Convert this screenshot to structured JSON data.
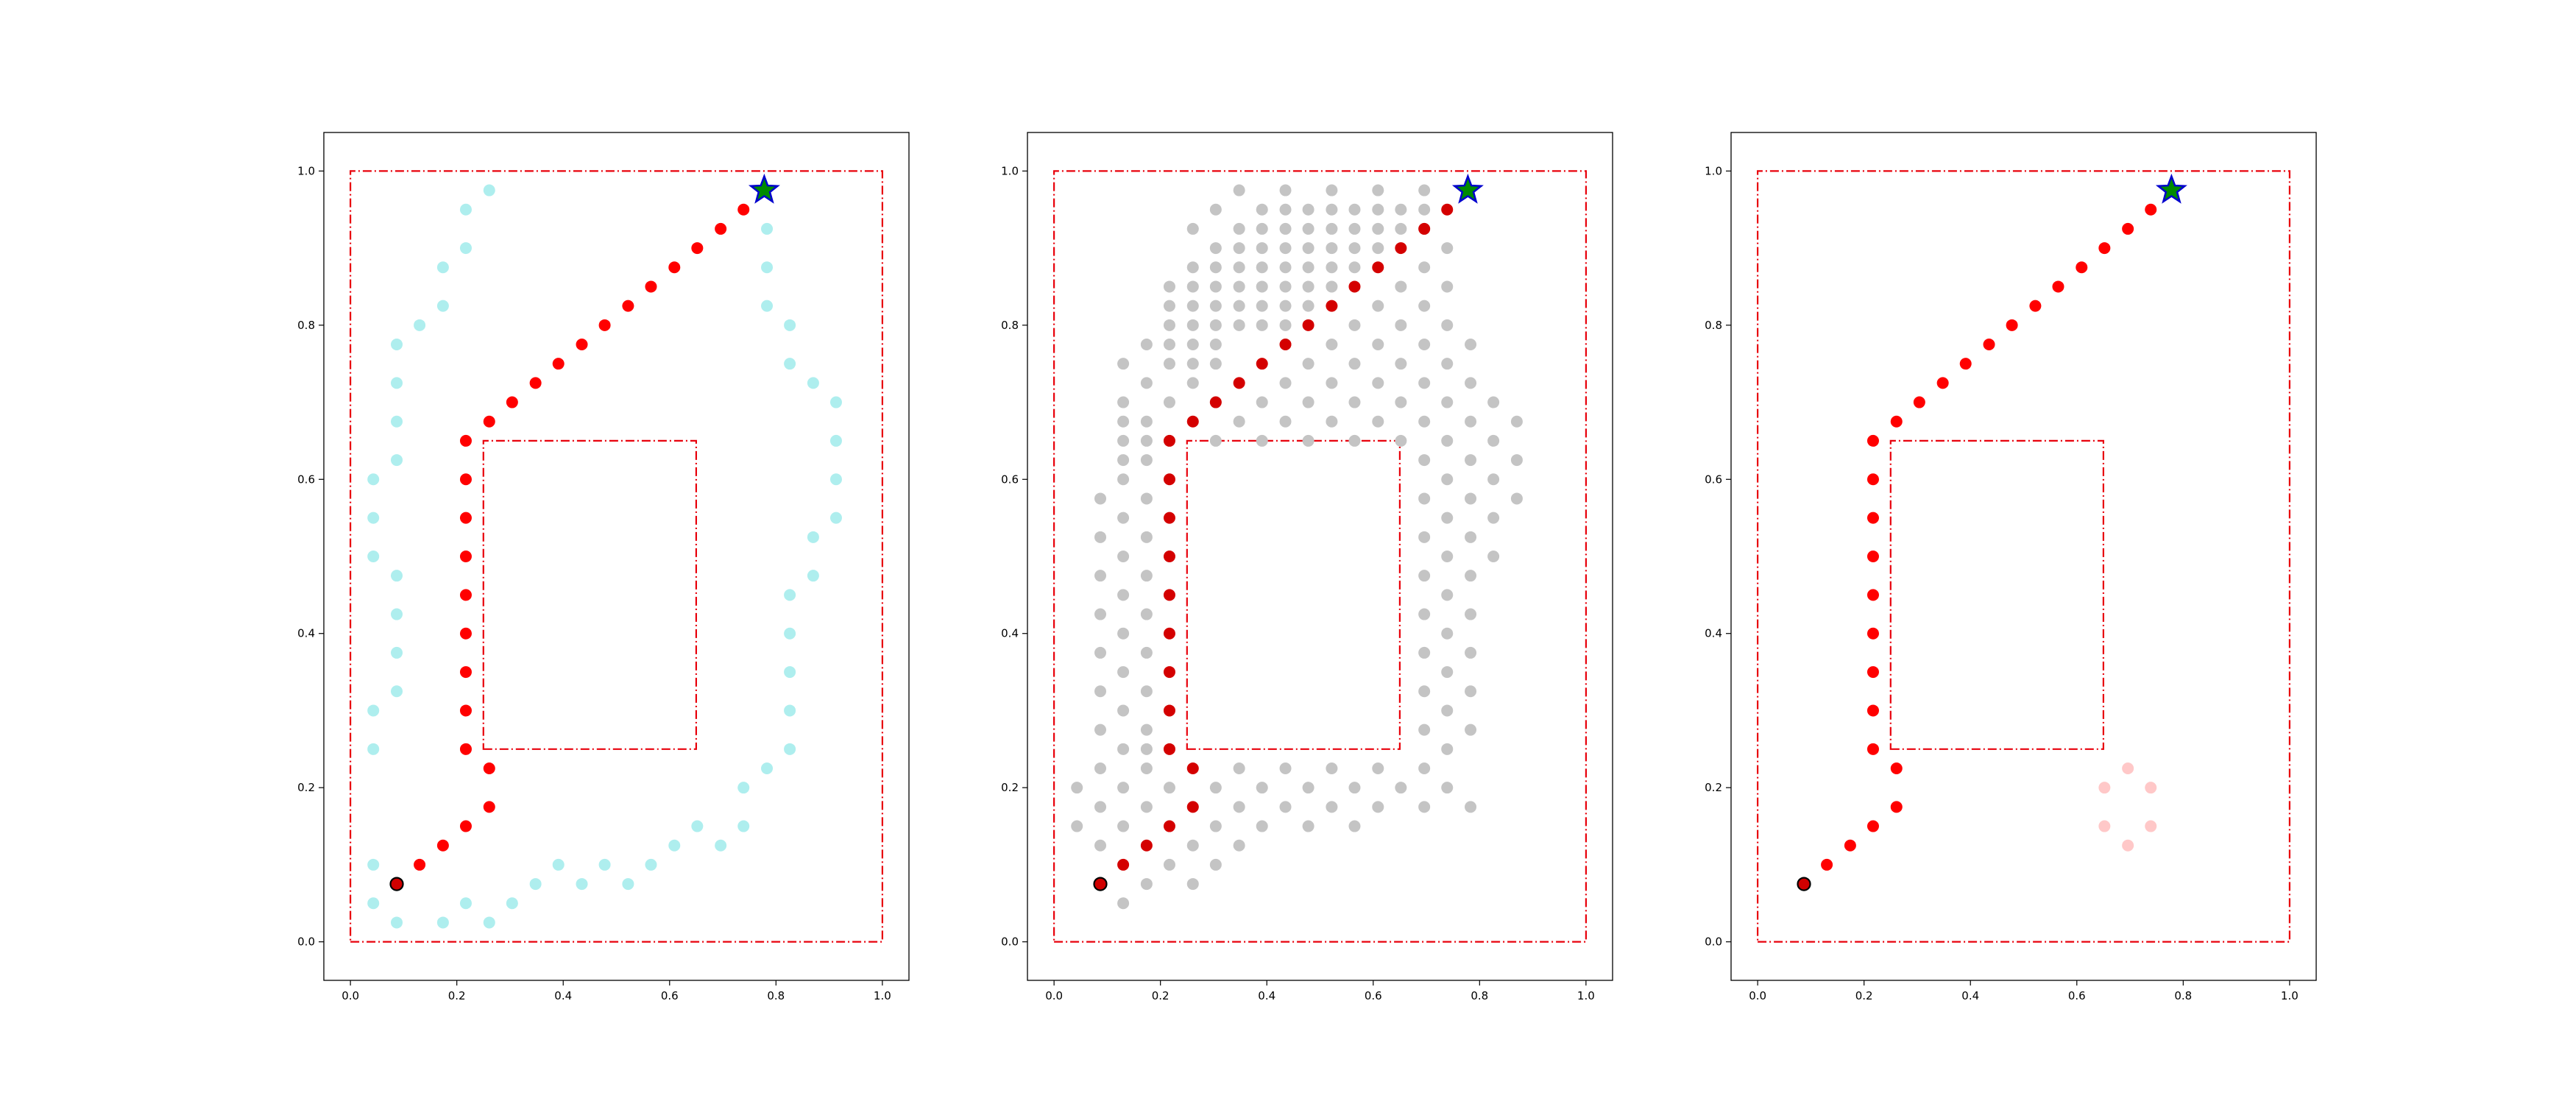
{
  "chart_data": [
    {
      "type": "scatter",
      "title": "",
      "xlabel": "",
      "ylabel": "",
      "xlim": [
        -0.05,
        1.05
      ],
      "ylim": [
        -0.05,
        1.05
      ],
      "xticks": [
        "0.0",
        "0.2",
        "0.4",
        "0.6",
        "0.8",
        "1.0"
      ],
      "yticks": [
        "0.0",
        "0.2",
        "0.4",
        "0.6",
        "0.8",
        "1.0"
      ],
      "grid": false,
      "outer_boundary": [
        [
          0,
          0
        ],
        [
          1,
          0
        ],
        [
          1,
          1
        ],
        [
          0,
          1
        ]
      ],
      "obstacle": [
        [
          0.25,
          0.25
        ],
        [
          0.65,
          0.25
        ],
        [
          0.65,
          0.65
        ],
        [
          0.25,
          0.65
        ]
      ],
      "start": [
        0.087,
        0.075
      ],
      "goal": [
        0.778,
        0.975
      ],
      "explored_points": [
        [
          0.043,
          0.05
        ],
        [
          0.087,
          0.025
        ],
        [
          0.043,
          0.1
        ],
        [
          0.174,
          0.025
        ],
        [
          0.217,
          0.05
        ],
        [
          0.261,
          0.025
        ],
        [
          0.304,
          0.05
        ],
        [
          0.348,
          0.075
        ],
        [
          0.391,
          0.1
        ],
        [
          0.435,
          0.075
        ],
        [
          0.478,
          0.1
        ],
        [
          0.522,
          0.075
        ],
        [
          0.565,
          0.1
        ],
        [
          0.609,
          0.125
        ],
        [
          0.652,
          0.15
        ],
        [
          0.696,
          0.125
        ],
        [
          0.739,
          0.15
        ],
        [
          0.739,
          0.2
        ],
        [
          0.783,
          0.225
        ],
        [
          0.826,
          0.25
        ],
        [
          0.826,
          0.3
        ],
        [
          0.826,
          0.35
        ],
        [
          0.826,
          0.4
        ],
        [
          0.826,
          0.45
        ],
        [
          0.87,
          0.475
        ],
        [
          0.87,
          0.525
        ],
        [
          0.913,
          0.55
        ],
        [
          0.913,
          0.6
        ],
        [
          0.913,
          0.65
        ],
        [
          0.913,
          0.7
        ],
        [
          0.87,
          0.725
        ],
        [
          0.826,
          0.75
        ],
        [
          0.826,
          0.8
        ],
        [
          0.783,
          0.825
        ],
        [
          0.783,
          0.875
        ],
        [
          0.783,
          0.925
        ],
        [
          0.043,
          0.25
        ],
        [
          0.043,
          0.3
        ],
        [
          0.087,
          0.325
        ],
        [
          0.087,
          0.375
        ],
        [
          0.087,
          0.425
        ],
        [
          0.087,
          0.475
        ],
        [
          0.043,
          0.5
        ],
        [
          0.043,
          0.55
        ],
        [
          0.043,
          0.6
        ],
        [
          0.087,
          0.625
        ],
        [
          0.087,
          0.675
        ],
        [
          0.087,
          0.725
        ],
        [
          0.087,
          0.775
        ],
        [
          0.13,
          0.8
        ],
        [
          0.174,
          0.825
        ],
        [
          0.174,
          0.875
        ],
        [
          0.217,
          0.9
        ],
        [
          0.217,
          0.95
        ],
        [
          0.261,
          0.975
        ]
      ],
      "path": [
        [
          0.087,
          0.075
        ],
        [
          0.13,
          0.1
        ],
        [
          0.174,
          0.125
        ],
        [
          0.217,
          0.15
        ],
        [
          0.261,
          0.175
        ],
        [
          0.261,
          0.225
        ],
        [
          0.217,
          0.25
        ],
        [
          0.217,
          0.3
        ],
        [
          0.217,
          0.35
        ],
        [
          0.217,
          0.4
        ],
        [
          0.217,
          0.45
        ],
        [
          0.217,
          0.5
        ],
        [
          0.217,
          0.55
        ],
        [
          0.217,
          0.6
        ],
        [
          0.217,
          0.65
        ],
        [
          0.261,
          0.675
        ],
        [
          0.304,
          0.7
        ],
        [
          0.348,
          0.725
        ],
        [
          0.391,
          0.75
        ],
        [
          0.435,
          0.775
        ],
        [
          0.478,
          0.8
        ],
        [
          0.522,
          0.825
        ],
        [
          0.565,
          0.85
        ],
        [
          0.609,
          0.875
        ],
        [
          0.652,
          0.9
        ],
        [
          0.696,
          0.925
        ],
        [
          0.739,
          0.95
        ],
        [
          0.778,
          0.975
        ]
      ],
      "colors": {
        "boundary": "#e8000b",
        "explored": "#aeeeee",
        "path": "#ff0000",
        "goal": "#008b00",
        "goal_edge": "#0000cd"
      }
    },
    {
      "type": "scatter",
      "title": "",
      "xlabel": "",
      "ylabel": "",
      "xlim": [
        -0.05,
        1.05
      ],
      "ylim": [
        -0.05,
        1.05
      ],
      "xticks": [
        "0.0",
        "0.2",
        "0.4",
        "0.6",
        "0.8",
        "1.0"
      ],
      "yticks": [
        "0.0",
        "0.2",
        "0.4",
        "0.6",
        "0.8",
        "1.0"
      ],
      "grid": false,
      "outer_boundary": [
        [
          0,
          0
        ],
        [
          1,
          0
        ],
        [
          1,
          1
        ],
        [
          0,
          1
        ]
      ],
      "obstacle": [
        [
          0.25,
          0.25
        ],
        [
          0.65,
          0.25
        ],
        [
          0.65,
          0.65
        ],
        [
          0.25,
          0.65
        ]
      ],
      "start": [
        0.087,
        0.075
      ],
      "goal": [
        0.778,
        0.975
      ],
      "explored_rows": [
        {
          "y": 0.05,
          "x": [
            0.13
          ]
        },
        {
          "y": 0.075,
          "x": [
            0.174,
            0.261
          ]
        },
        {
          "y": 0.1,
          "x": [
            0.217,
            0.304
          ]
        },
        {
          "y": 0.125,
          "x": [
            0.087,
            0.261,
            0.348
          ]
        },
        {
          "y": 0.15,
          "x": [
            0.043,
            0.13,
            0.304,
            0.391,
            0.478,
            0.565
          ]
        },
        {
          "y": 0.175,
          "x": [
            0.087,
            0.174,
            0.348,
            0.435,
            0.522,
            0.609,
            0.696,
            0.783
          ]
        },
        {
          "y": 0.2,
          "x": [
            0.043,
            0.13,
            0.217,
            0.304,
            0.391,
            0.478,
            0.565,
            0.652,
            0.739
          ]
        },
        {
          "y": 0.225,
          "x": [
            0.087,
            0.174,
            0.348,
            0.435,
            0.522,
            0.609,
            0.696
          ]
        },
        {
          "y": 0.25,
          "x": [
            0.13,
            0.174,
            0.739
          ]
        },
        {
          "y": 0.275,
          "x": [
            0.087,
            0.174,
            0.696,
            0.783
          ]
        },
        {
          "y": 0.3,
          "x": [
            0.13,
            0.739
          ]
        },
        {
          "y": 0.325,
          "x": [
            0.087,
            0.174,
            0.696,
            0.783
          ]
        },
        {
          "y": 0.35,
          "x": [
            0.13,
            0.739
          ]
        },
        {
          "y": 0.375,
          "x": [
            0.087,
            0.174,
            0.696,
            0.783
          ]
        },
        {
          "y": 0.4,
          "x": [
            0.13,
            0.739
          ]
        },
        {
          "y": 0.425,
          "x": [
            0.087,
            0.174,
            0.696,
            0.783
          ]
        },
        {
          "y": 0.45,
          "x": [
            0.13,
            0.739
          ]
        },
        {
          "y": 0.475,
          "x": [
            0.087,
            0.174,
            0.696,
            0.783
          ]
        },
        {
          "y": 0.5,
          "x": [
            0.13,
            0.739,
            0.826
          ]
        },
        {
          "y": 0.525,
          "x": [
            0.087,
            0.174,
            0.696,
            0.783
          ]
        },
        {
          "y": 0.55,
          "x": [
            0.13,
            0.739,
            0.826
          ]
        },
        {
          "y": 0.575,
          "x": [
            0.087,
            0.174,
            0.696,
            0.783,
            0.87
          ]
        },
        {
          "y": 0.6,
          "x": [
            0.13,
            0.739,
            0.826
          ]
        },
        {
          "y": 0.625,
          "x": [
            0.13,
            0.174,
            0.696,
            0.783,
            0.87
          ]
        },
        {
          "y": 0.65,
          "x": [
            0.13,
            0.174,
            0.304,
            0.391,
            0.478,
            0.565,
            0.652,
            0.739,
            0.826
          ]
        },
        {
          "y": 0.675,
          "x": [
            0.13,
            0.174,
            0.348,
            0.435,
            0.522,
            0.609,
            0.696,
            0.783,
            0.87
          ]
        },
        {
          "y": 0.7,
          "x": [
            0.13,
            0.217,
            0.304,
            0.391,
            0.478,
            0.565,
            0.652,
            0.739,
            0.826
          ]
        },
        {
          "y": 0.725,
          "x": [
            0.174,
            0.261,
            0.435,
            0.522,
            0.609,
            0.696,
            0.783
          ]
        },
        {
          "y": 0.75,
          "x": [
            0.13,
            0.217,
            0.261,
            0.304,
            0.478,
            0.565,
            0.652,
            0.739
          ]
        },
        {
          "y": 0.775,
          "x": [
            0.174,
            0.217,
            0.261,
            0.304,
            0.435,
            0.522,
            0.609,
            0.696,
            0.783
          ]
        },
        {
          "y": 0.8,
          "x": [
            0.217,
            0.261,
            0.304,
            0.348,
            0.391,
            0.435,
            0.565,
            0.652,
            0.739
          ]
        },
        {
          "y": 0.825,
          "x": [
            0.217,
            0.261,
            0.304,
            0.348,
            0.391,
            0.435,
            0.478,
            0.609,
            0.696
          ]
        },
        {
          "y": 0.85,
          "x": [
            0.217,
            0.261,
            0.304,
            0.348,
            0.391,
            0.435,
            0.478,
            0.522,
            0.652,
            0.739
          ]
        },
        {
          "y": 0.875,
          "x": [
            0.261,
            0.304,
            0.348,
            0.391,
            0.435,
            0.478,
            0.522,
            0.565,
            0.696
          ]
        },
        {
          "y": 0.9,
          "x": [
            0.304,
            0.348,
            0.391,
            0.435,
            0.478,
            0.522,
            0.565,
            0.609,
            0.739
          ]
        },
        {
          "y": 0.925,
          "x": [
            0.261,
            0.348,
            0.391,
            0.435,
            0.478,
            0.522,
            0.565,
            0.609,
            0.652,
            0.696
          ]
        },
        {
          "y": 0.95,
          "x": [
            0.304,
            0.391,
            0.435,
            0.478,
            0.522,
            0.565,
            0.609,
            0.652,
            0.696
          ]
        },
        {
          "y": 0.975,
          "x": [
            0.348,
            0.435,
            0.522,
            0.609,
            0.696
          ]
        }
      ],
      "path": [
        [
          0.087,
          0.075
        ],
        [
          0.13,
          0.1
        ],
        [
          0.174,
          0.125
        ],
        [
          0.217,
          0.15
        ],
        [
          0.261,
          0.175
        ],
        [
          0.261,
          0.225
        ],
        [
          0.217,
          0.25
        ],
        [
          0.217,
          0.3
        ],
        [
          0.217,
          0.35
        ],
        [
          0.217,
          0.4
        ],
        [
          0.217,
          0.45
        ],
        [
          0.217,
          0.5
        ],
        [
          0.217,
          0.55
        ],
        [
          0.217,
          0.6
        ],
        [
          0.217,
          0.65
        ],
        [
          0.261,
          0.675
        ],
        [
          0.304,
          0.7
        ],
        [
          0.348,
          0.725
        ],
        [
          0.391,
          0.75
        ],
        [
          0.435,
          0.775
        ],
        [
          0.478,
          0.8
        ],
        [
          0.522,
          0.825
        ],
        [
          0.565,
          0.85
        ],
        [
          0.609,
          0.875
        ],
        [
          0.652,
          0.9
        ],
        [
          0.696,
          0.925
        ],
        [
          0.739,
          0.95
        ],
        [
          0.778,
          0.975
        ]
      ],
      "colors": {
        "boundary": "#e8000b",
        "explored": "#c4c4c4",
        "path": "#d40000",
        "goal": "#008b00",
        "goal_edge": "#0000cd"
      }
    },
    {
      "type": "scatter",
      "title": "",
      "xlabel": "",
      "ylabel": "",
      "xlim": [
        -0.05,
        1.05
      ],
      "ylim": [
        -0.05,
        1.05
      ],
      "xticks": [
        "0.0",
        "0.2",
        "0.4",
        "0.6",
        "0.8",
        "1.0"
      ],
      "yticks": [
        "0.0",
        "0.2",
        "0.4",
        "0.6",
        "0.8",
        "1.0"
      ],
      "grid": false,
      "outer_boundary": [
        [
          0,
          0
        ],
        [
          1,
          0
        ],
        [
          1,
          1
        ],
        [
          0,
          1
        ]
      ],
      "obstacle": [
        [
          0.25,
          0.25
        ],
        [
          0.65,
          0.25
        ],
        [
          0.65,
          0.65
        ],
        [
          0.25,
          0.65
        ]
      ],
      "start": [
        0.087,
        0.075
      ],
      "goal": [
        0.778,
        0.975
      ],
      "explored_points": [
        [
          0.696,
          0.225
        ],
        [
          0.652,
          0.2
        ],
        [
          0.739,
          0.2
        ],
        [
          0.652,
          0.15
        ],
        [
          0.739,
          0.15
        ],
        [
          0.696,
          0.125
        ]
      ],
      "path": [
        [
          0.087,
          0.075
        ],
        [
          0.13,
          0.1
        ],
        [
          0.174,
          0.125
        ],
        [
          0.217,
          0.15
        ],
        [
          0.261,
          0.175
        ],
        [
          0.261,
          0.225
        ],
        [
          0.217,
          0.25
        ],
        [
          0.217,
          0.3
        ],
        [
          0.217,
          0.35
        ],
        [
          0.217,
          0.4
        ],
        [
          0.217,
          0.45
        ],
        [
          0.217,
          0.5
        ],
        [
          0.217,
          0.55
        ],
        [
          0.217,
          0.6
        ],
        [
          0.217,
          0.65
        ],
        [
          0.261,
          0.675
        ],
        [
          0.304,
          0.7
        ],
        [
          0.348,
          0.725
        ],
        [
          0.391,
          0.75
        ],
        [
          0.435,
          0.775
        ],
        [
          0.478,
          0.8
        ],
        [
          0.522,
          0.825
        ],
        [
          0.565,
          0.85
        ],
        [
          0.609,
          0.875
        ],
        [
          0.652,
          0.9
        ],
        [
          0.696,
          0.925
        ],
        [
          0.739,
          0.95
        ],
        [
          0.778,
          0.975
        ]
      ],
      "colors": {
        "boundary": "#e8000b",
        "explored": "#ffc8c8",
        "path": "#ff0000",
        "goal": "#008b00",
        "goal_edge": "#0000cd"
      }
    }
  ]
}
